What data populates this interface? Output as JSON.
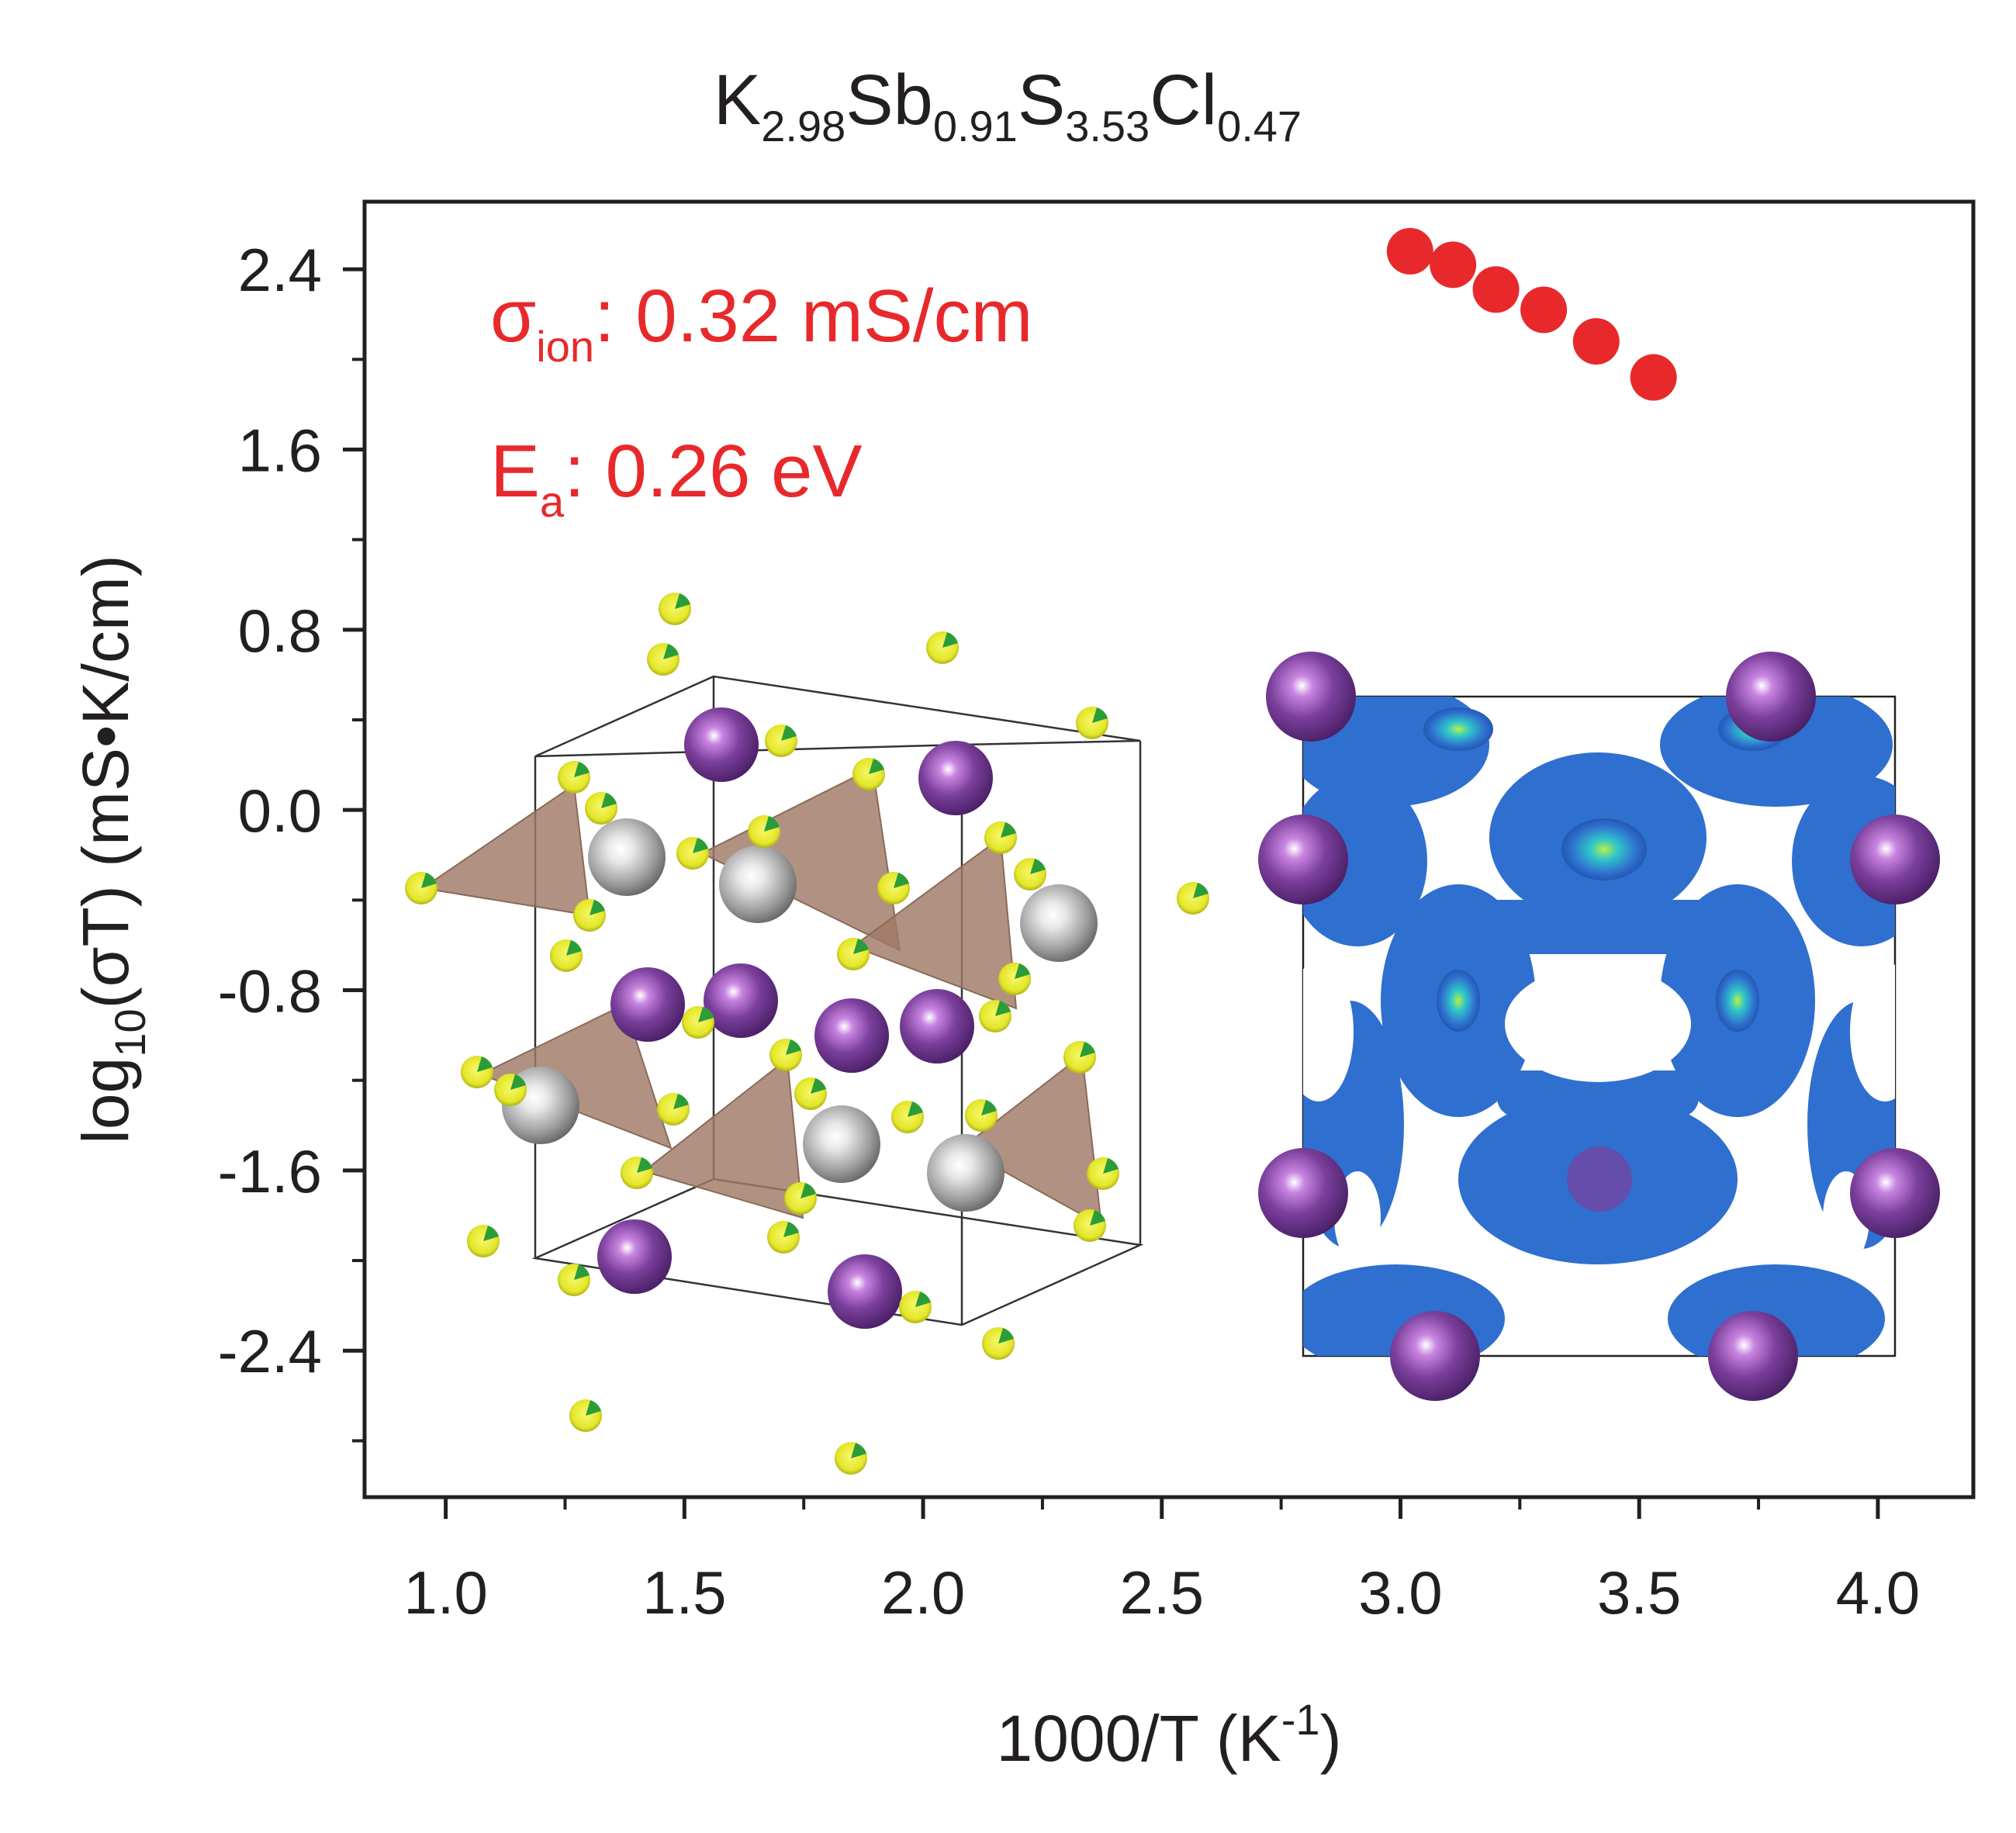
{
  "chart_data": {
    "type": "scatter",
    "title": {
      "parts": [
        {
          "text": "K",
          "sub": "2.98"
        },
        {
          "text": "Sb",
          "sub": "0.91"
        },
        {
          "text": "S",
          "sub": "3.53"
        },
        {
          "text": "Cl",
          "sub": "0.47"
        }
      ]
    },
    "xlabel": {
      "main": "1000/T (K",
      "sup": "-1",
      "end": ")"
    },
    "ylabel": {
      "pre": "log",
      "sub": "10",
      "post": "(σT) (mS•K/cm)"
    },
    "xlim": [
      0.83,
      4.2
    ],
    "ylim": [
      -3.05,
      2.7
    ],
    "x_ticks": [
      1.0,
      1.5,
      2.0,
      2.5,
      3.0,
      3.5,
      4.0
    ],
    "x_tick_labels": [
      "1.0",
      "1.5",
      "2.0",
      "2.5",
      "3.0",
      "3.5",
      "4.0"
    ],
    "y_ticks": [
      -2.4,
      -1.6,
      -0.8,
      0.0,
      0.8,
      1.6,
      2.4
    ],
    "y_tick_labels": [
      "-2.4",
      "-1.6",
      "-0.8",
      "0.0",
      "0.8",
      "1.6",
      "2.4"
    ],
    "grid": false,
    "series": [
      {
        "name": "K2.98Sb0.91S3.53Cl0.47",
        "color": "#e8292b",
        "x": [
          3.02,
          3.11,
          3.2,
          3.3,
          3.41,
          3.53
        ],
        "y": [
          2.48,
          2.42,
          2.31,
          2.22,
          2.08,
          1.92
        ]
      }
    ],
    "annotations": [
      {
        "symbol": "σ",
        "sub": "ion",
        "rest": ": 0.32 mS/cm"
      },
      {
        "symbol": "E",
        "sub": "a",
        "rest": ": 0.26 eV"
      }
    ],
    "insets": [
      {
        "name": "crystal-structure",
        "description_icon": "unit-cell-icon"
      },
      {
        "name": "ion-density-map",
        "description_icon": "isosurface-icon"
      }
    ]
  },
  "colors": {
    "data": "#e8292b",
    "axis": "#231f20",
    "k_atom": "#7a3f9b",
    "sb_atom": "#a9a9a9",
    "s_atom": "#ecee2c",
    "polyhedron": "#a07a66",
    "density": "#2f6fcf"
  }
}
